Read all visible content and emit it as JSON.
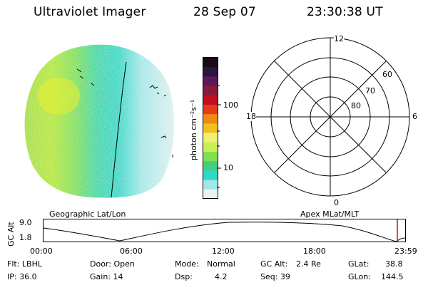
{
  "header": {
    "instrument": "Ultraviolet Imager",
    "date": "28 Sep 07",
    "time": "23:30:38 UT"
  },
  "colorbar": {
    "label": "photon cm⁻²s⁻¹",
    "ticks": [
      "100",
      "10"
    ],
    "colors": [
      "#1a0a1a",
      "#2a1440",
      "#5a1a5a",
      "#8a1a3a",
      "#c01020",
      "#e83a18",
      "#f08a10",
      "#f0c020",
      "#f0f070",
      "#c8f050",
      "#80e050",
      "#40d080",
      "#30d8c8",
      "#a0e8e8",
      "#e8f4f4"
    ]
  },
  "polar_plot": {
    "labels": {
      "top": "12",
      "bottom": "0",
      "left": "18",
      "right": "6"
    },
    "rings": [
      "60",
      "70",
      "80"
    ]
  },
  "map_labels": {
    "left": "Geographic Lat/Lon",
    "right": "Apex MLat/MLT"
  },
  "altitude_panel": {
    "ylabel": "GC Alt",
    "yticks": [
      "9.0",
      "1.8"
    ],
    "xticks": [
      "00:00",
      "06:00",
      "12:00",
      "18:00",
      "23:59"
    ]
  },
  "info": {
    "flt": "Flt: LBHL",
    "ip": "IP: 36.0",
    "door": "Door: Open",
    "gain": "Gain: 14",
    "mode_label": "Mode:",
    "mode_value": "Normal",
    "dsp_label": "Dsp:",
    "dsp_value": "4.2",
    "gcalt_label": "GC Alt:",
    "gcalt_value": "2.4 Re",
    "seq": "Seq: 39",
    "glat_label": "GLat:",
    "glat_value": "38.8",
    "glon_label": "GLon:",
    "glon_value": "144.5"
  }
}
